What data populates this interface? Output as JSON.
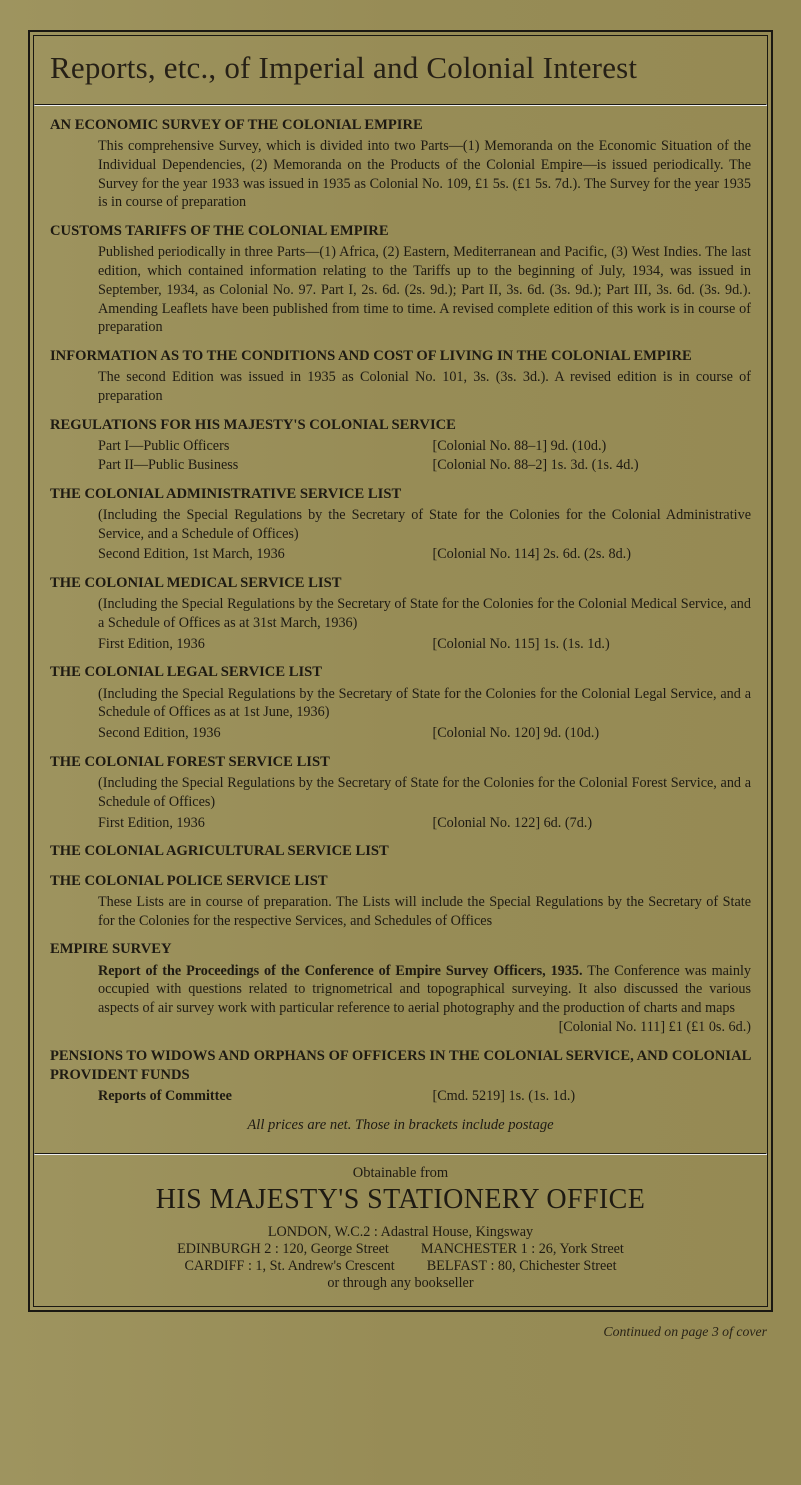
{
  "masthead": "Reports, etc., of Imperial and Colonial Interest",
  "econSurvey": {
    "title": "AN ECONOMIC SURVEY OF THE COLONIAL EMPIRE",
    "body": "This comprehensive Survey, which is divided into two Parts—(1) Memoranda on the Economic Situation of the Individual Dependencies, (2) Memoranda on the Products of the Colonial Empire—is issued periodically. The Survey for the year 1933 was issued in 1935 as Colonial No. 109, £1 5s. (£1 5s. 7d.). The Survey for the year 1935 is in course of preparation"
  },
  "customs": {
    "title": "CUSTOMS TARIFFS OF THE COLONIAL EMPIRE",
    "body": "Published periodically in three Parts—(1) Africa, (2) Eastern, Mediterranean and Pacific, (3) West Indies. The last edition, which contained information relating to the Tariffs up to the beginning of July, 1934, was issued in September, 1934, as Colonial No. 97. Part I, 2s. 6d. (2s. 9d.); Part II, 3s. 6d. (3s. 9d.); Part III, 3s. 6d. (3s. 9d.). Amending Leaflets have been published from time to time. A revised complete edition of this work is in course of preparation"
  },
  "info": {
    "title": "INFORMATION AS TO THE CONDITIONS AND COST OF LIVING IN THE COLONIAL EMPIRE",
    "body": "The second Edition was issued in 1935 as Colonial No. 101, 3s. (3s. 3d.). A revised edition is in course of preparation"
  },
  "regs": {
    "title": "REGULATIONS FOR HIS MAJESTY'S COLONIAL SERVICE",
    "part1L": "Part I—Public Officers",
    "part1R": "[Colonial No. 88–1] 9d. (10d.)",
    "part2L": "Part II—Public Business",
    "part2R": "[Colonial No. 88–2] 1s. 3d. (1s. 4d.)"
  },
  "admin": {
    "title": "THE COLONIAL ADMINISTRATIVE SERVICE LIST",
    "body": "(Including the Special Regulations by the Secretary of State for the Colonies for the Colonial Administrative Service, and a Schedule of Offices)",
    "edL": "Second Edition, 1st March, 1936",
    "edR": "[Colonial No. 114] 2s. 6d. (2s. 8d.)"
  },
  "medical": {
    "title": "THE COLONIAL MEDICAL SERVICE LIST",
    "body": "(Including the Special Regulations by the Secretary of State for the Colonies for the Colonial Medical Service, and a Schedule of Offices as at 31st March, 1936)",
    "edL": "First Edition, 1936",
    "edR": "[Colonial No. 115] 1s. (1s. 1d.)"
  },
  "legal": {
    "title": "THE COLONIAL LEGAL SERVICE LIST",
    "body": "(Including the Special Regulations by the Secretary of State for the Colonies for the Colonial Legal Service, and a Schedule of Offices as at 1st June, 1936)",
    "edL": "Second Edition, 1936",
    "edR": "[Colonial No. 120] 9d. (10d.)"
  },
  "forest": {
    "title": "THE COLONIAL FOREST SERVICE LIST",
    "body": "(Including the Special Regulations by the Secretary of State for the Colonies for the Colonial Forest Service, and a Schedule of Offices)",
    "edL": "First Edition, 1936",
    "edR": "[Colonial No. 122] 6d. (7d.)"
  },
  "agri": {
    "title": "THE COLONIAL AGRICULTURAL SERVICE LIST"
  },
  "police": {
    "title": "THE COLONIAL POLICE SERVICE LIST",
    "body": "These Lists are in course of preparation. The Lists will include the Special Regulations by the Secretary of State for the Colonies for the respective Services, and Schedules of Offices"
  },
  "empire": {
    "title": "EMPIRE SURVEY",
    "sub": "Report of the Proceedings of the Conference of Empire Survey Officers, 1935.",
    "body": "The Conference was mainly occupied with questions related to trignometrical and topographical surveying. It also discussed the various aspects of air survey work with particular reference to aerial photography and the production of charts and maps",
    "price": "[Colonial No. 111] £1 (£1 0s. 6d.)"
  },
  "pensions": {
    "title": "PENSIONS TO WIDOWS AND ORPHANS OF OFFICERS IN THE COLONIAL SERVICE, AND COLONIAL PROVIDENT FUNDS",
    "edL": "Reports of Committee",
    "edR": "[Cmd. 5219] 1s. (1s. 1d.)"
  },
  "pricesNote": "All prices are net.   Those in brackets include postage",
  "obtain": {
    "from": "Obtainable from",
    "hmso": "HIS MAJESTY'S STATIONERY OFFICE",
    "london": "LONDON, W.C.2 : Adastral House, Kingsway",
    "edin": "EDINBURGH 2 : 120, George Street",
    "manc": "MANCHESTER 1 : 26, York Street",
    "card": "CARDIFF : 1, St. Andrew's Crescent",
    "belf": "BELFAST : 80, Chichester Street",
    "bookseller": "or through any bookseller"
  },
  "continued": "Continued on page 3 of cover"
}
